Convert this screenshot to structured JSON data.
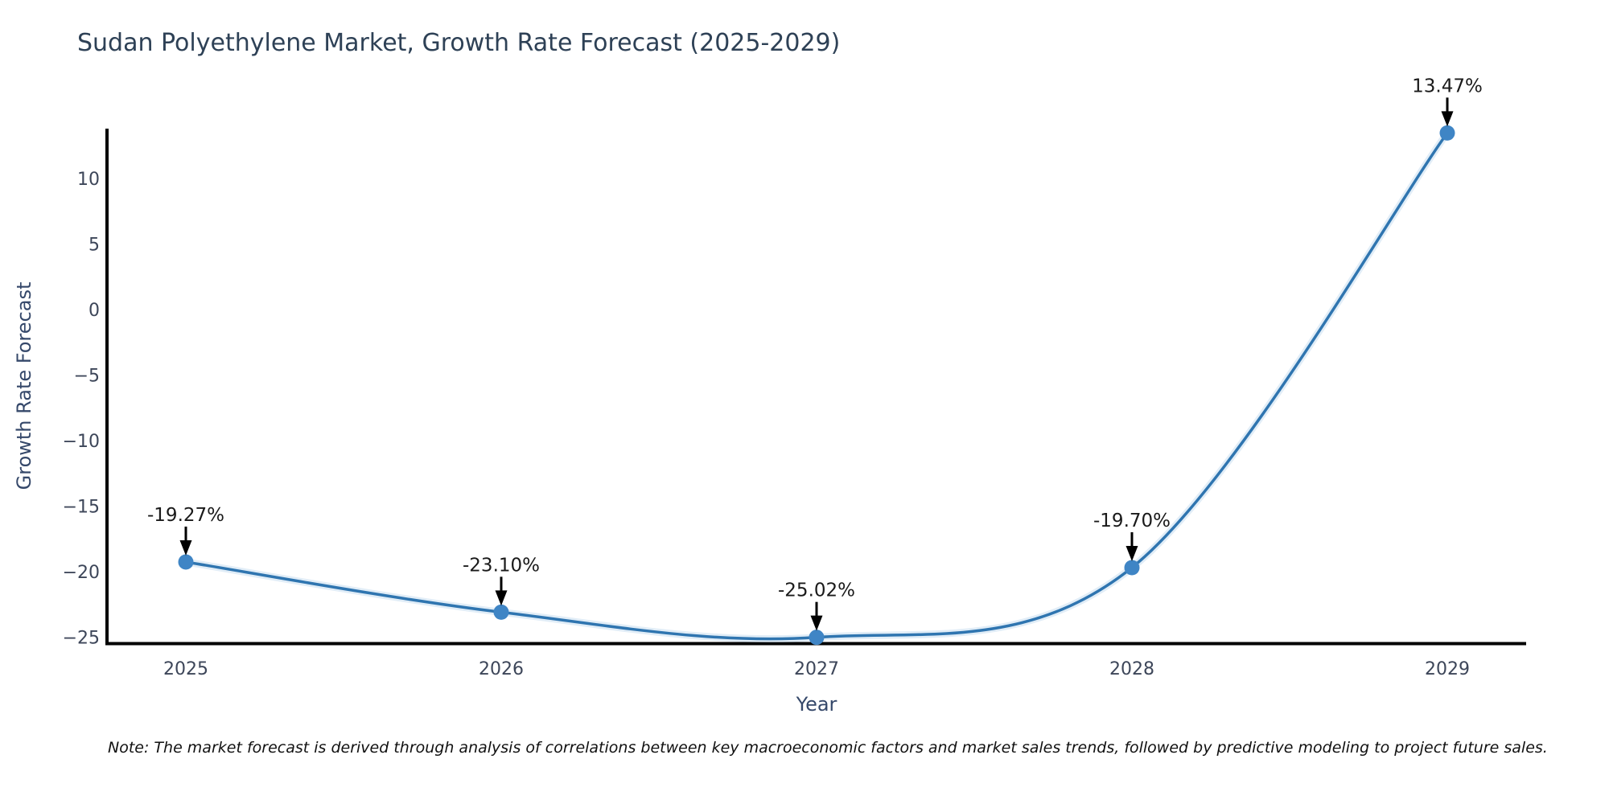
{
  "note": "Note: The market forecast is derived through analysis of correlations between key macroeconomic factors and market sales trends, followed by predictive modeling to project future sales.",
  "chart_data": {
    "type": "line",
    "title": "Sudan Polyethylene Market, Growth Rate Forecast (2025-2029)",
    "xlabel": "Year",
    "ylabel": "Growth Rate Forecast",
    "x": [
      2025,
      2026,
      2027,
      2028,
      2029
    ],
    "x_tick_labels": [
      "2025",
      "2026",
      "2027",
      "2028",
      "2029"
    ],
    "values": [
      -19.27,
      -23.1,
      -25.02,
      -19.7,
      13.47
    ],
    "annotations": [
      "-19.27%",
      "-23.10%",
      "-25.02%",
      "-19.70%",
      "13.47%"
    ],
    "y_ticks": [
      10,
      5,
      0,
      -5,
      -10,
      -15,
      -20,
      -25
    ],
    "y_tick_labels": [
      "10",
      "5",
      "0",
      "−5",
      "−10",
      "−15",
      "−20",
      "−25"
    ],
    "xlim": [
      2024.75,
      2029.25
    ],
    "ylim": [
      -25.5,
      13.8
    ],
    "grid": false,
    "legend": "none",
    "line_shape": "spline",
    "colors": {
      "line": "#2f75b0",
      "line_glow": "#a8cbe8",
      "marker": "#3f85c5",
      "annotation_text": "#1a1a1a",
      "arrow": "#000000",
      "axis": "#000000",
      "title_text": "#2e4156",
      "axis_label_text": "#35486a",
      "tick_text": "#3d4659"
    }
  }
}
